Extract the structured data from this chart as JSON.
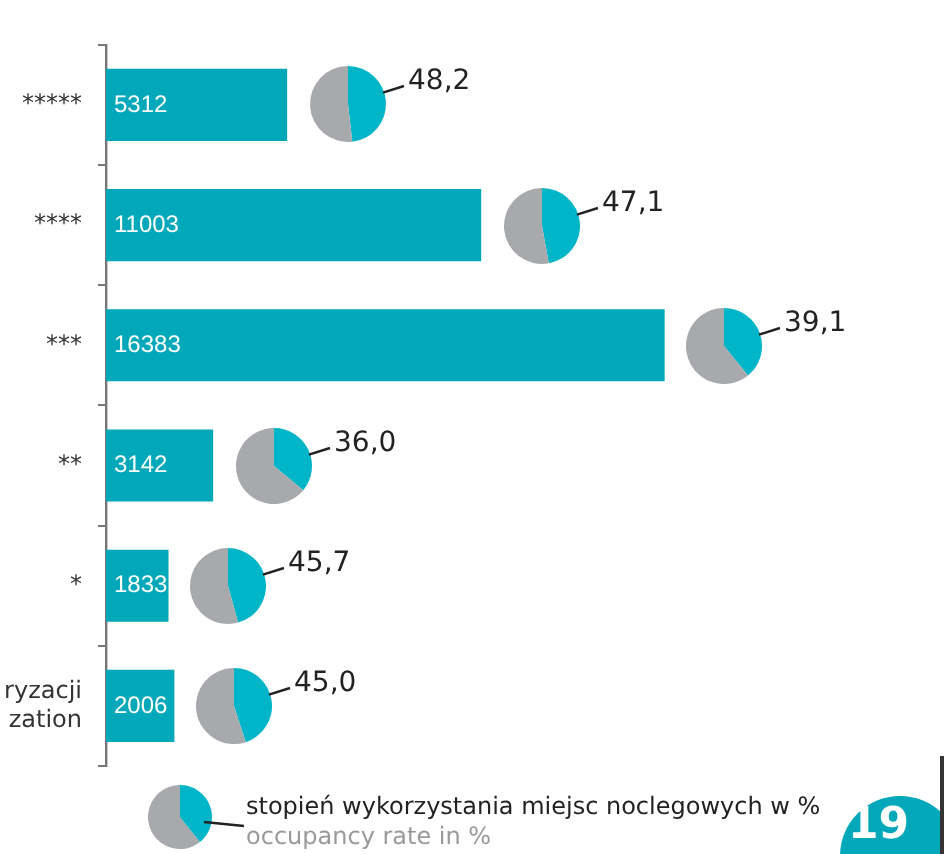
{
  "chart_data": [
    {
      "type": "bar",
      "orientation": "horizontal",
      "categories": [
        "*****",
        "****",
        "***",
        "**",
        "*",
        "ryzacji\nzation"
      ],
      "values": [
        5312,
        11003,
        16383,
        3142,
        1833,
        2006
      ],
      "color": "#00a8b9",
      "tick_labels": "y",
      "data_labels": true,
      "grid": false,
      "legend": false,
      "annotations": [
        "stopień wykorzystania miejsc noclegowych w %",
        "occupancy rate in %",
        "19"
      ]
    },
    {
      "type": "pie",
      "categories": [
        null,
        null
      ],
      "values": [
        48.2,
        51.8
      ],
      "colors": [
        "#00b5c8",
        "#a7a9ac"
      ],
      "value_labels": [
        "48,2",
        null
      ]
    },
    {
      "type": "pie",
      "categories": [
        null,
        null
      ],
      "values": [
        47.1,
        52.9
      ],
      "colors": [
        "#00b5c8",
        "#a7a9ac"
      ],
      "value_labels": [
        "47,1",
        null
      ]
    },
    {
      "type": "pie",
      "categories": [
        null,
        null
      ],
      "values": [
        39.1,
        60.9
      ],
      "colors": [
        "#00b5c8",
        "#a7a9ac"
      ],
      "value_labels": [
        "39,1",
        null
      ]
    },
    {
      "type": "pie",
      "categories": [
        null,
        null
      ],
      "values": [
        36.0,
        64.0
      ],
      "colors": [
        "#00b5c8",
        "#a7a9ac"
      ],
      "value_labels": [
        "36,0",
        null
      ]
    },
    {
      "type": "pie",
      "categories": [
        null,
        null
      ],
      "values": [
        45.7,
        54.3
      ],
      "colors": [
        "#00b5c8",
        "#a7a9ac"
      ],
      "value_labels": [
        "45,7",
        null
      ]
    },
    {
      "type": "pie",
      "categories": [
        null,
        null
      ],
      "values": [
        45.0,
        55.0
      ],
      "colors": [
        "#00b5c8",
        "#a7a9ac"
      ],
      "value_labels": [
        "45,0",
        null
      ]
    }
  ]
}
